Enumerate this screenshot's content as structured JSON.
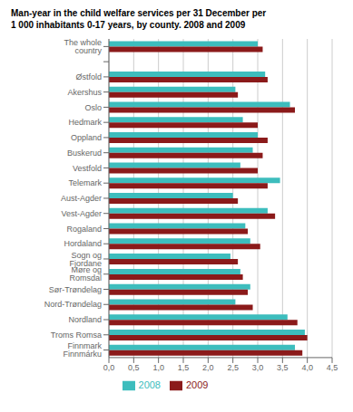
{
  "chart_data": {
    "type": "bar",
    "orientation": "horizontal",
    "title": "Man-year in the child welfare services per 31 December per\n1 000 inhabitants 0-17 years, by county. 2008 and 2009",
    "categories": [
      "The whole country",
      null,
      "Østfold",
      "Akershus",
      "Oslo",
      "Hedmark",
      "Oppland",
      "Buskerud",
      "Vestfold",
      "Telemark",
      "Aust-Agder",
      "Vest-Agder",
      "Rogaland",
      "Hordaland",
      "Sogn og Fjordane",
      "Møre og Romsdal",
      "Sør-Trøndelag",
      "Nord-Trøndelag",
      "Nordland",
      "Troms Romsa",
      "Finnmark Finnmárku"
    ],
    "series": [
      {
        "name": "2008",
        "color": "#3dbdbd",
        "values": [
          3.0,
          null,
          3.15,
          2.55,
          3.65,
          2.7,
          3.0,
          2.9,
          2.65,
          3.45,
          2.5,
          3.2,
          2.75,
          2.85,
          2.45,
          2.65,
          2.85,
          2.55,
          3.6,
          3.95,
          3.75
        ]
      },
      {
        "name": "2009",
        "color": "#8b1a1a",
        "values": [
          3.1,
          null,
          3.2,
          2.6,
          3.75,
          3.0,
          3.2,
          3.1,
          3.0,
          3.2,
          2.6,
          3.35,
          2.8,
          3.05,
          2.6,
          2.7,
          2.8,
          2.9,
          3.8,
          4.0,
          3.9
        ]
      }
    ],
    "xlim": [
      0,
      4.5
    ],
    "xticks": [
      {
        "value": 0.0,
        "label": "0,0"
      },
      {
        "value": 0.5,
        "label": "0,5"
      },
      {
        "value": 1.0,
        "label": "1,0"
      },
      {
        "value": 1.5,
        "label": "1,5"
      },
      {
        "value": 2.0,
        "label": "2,0"
      },
      {
        "value": 2.5,
        "label": "2,5"
      },
      {
        "value": 3.0,
        "label": "3,0"
      },
      {
        "value": 3.5,
        "label": "3,5"
      },
      {
        "value": 4.0,
        "label": "4,0"
      },
      {
        "value": 4.5,
        "label": "4,5"
      }
    ],
    "grid": true,
    "legend": "bottom"
  }
}
